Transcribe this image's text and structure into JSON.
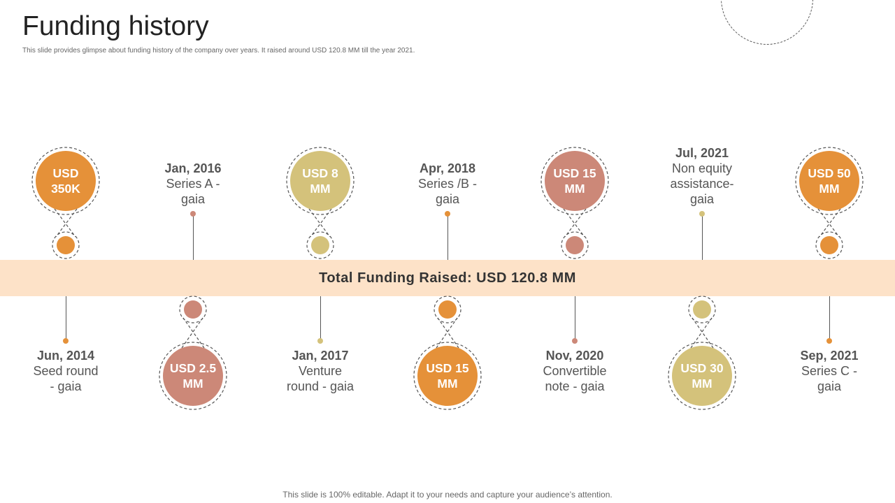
{
  "slide": {
    "title": "Funding history",
    "subtitle": "This slide provides glimpse about funding history of the company over years. It raised around USD 120.8 MM till the year 2021.",
    "footer": "This slide is 100% editable. Adapt it to your needs and capture your audience’s attention.",
    "total_banner": "Total Funding Raised: USD 120.8 MM"
  },
  "colors": {
    "orange": "#e59139",
    "khaki": "#d4c27b",
    "rose": "#cc8878",
    "band": "#fde2c8"
  },
  "rounds": [
    {
      "date": "Jun, 2014",
      "desc": "Seed round\n- gaia",
      "amount": "USD\n350K",
      "color": "orange"
    },
    {
      "date": "Jan, 2016",
      "desc": "Series A -\ngaia",
      "amount": "USD 2.5\nMM",
      "color": "rose"
    },
    {
      "date": "Jan, 2017",
      "desc": "Venture\nround - gaia",
      "amount": "USD 8\nMM",
      "color": "khaki"
    },
    {
      "date": "Apr, 2018",
      "desc": "Series /B -\ngaia",
      "amount": "USD 15\nMM",
      "color": "orange"
    },
    {
      "date": "Nov, 2020",
      "desc": "Convertible\nnote - gaia",
      "amount": "USD 15\nMM",
      "color": "rose"
    },
    {
      "date": "Jul, 2021",
      "desc": "Non equity\nassistance-\ngaia",
      "amount": "USD 30\nMM",
      "color": "khaki"
    },
    {
      "date": "Sep, 2021",
      "desc": "Series C -\ngaia",
      "amount": "USD 50\nMM",
      "color": "orange"
    }
  ]
}
